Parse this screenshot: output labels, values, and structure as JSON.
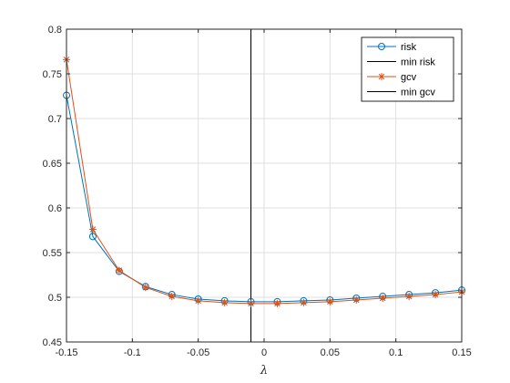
{
  "chart_data": {
    "type": "line",
    "title": "",
    "xlabel": "λ",
    "ylabel": "",
    "xlim": [
      -0.15,
      0.15
    ],
    "ylim": [
      0.45,
      0.8
    ],
    "xticks": [
      -0.15,
      -0.1,
      -0.05,
      0,
      0.05,
      0.1,
      0.15
    ],
    "xtick_labels": [
      "-0.15",
      "-0.1",
      "-0.05",
      "0",
      "0.05",
      "0.1",
      "0.15"
    ],
    "yticks": [
      0.45,
      0.5,
      0.55,
      0.6,
      0.65,
      0.7,
      0.75,
      0.8
    ],
    "ytick_labels": [
      "0.45",
      "0.5",
      "0.55",
      "0.6",
      "0.65",
      "0.7",
      "0.75",
      "0.8"
    ],
    "grid": true,
    "legend_position": "top-right",
    "x": [
      -0.15,
      -0.13,
      -0.11,
      -0.09,
      -0.07,
      -0.05,
      -0.03,
      -0.01,
      0.01,
      0.03,
      0.05,
      0.07,
      0.09,
      0.11,
      0.13,
      0.15
    ],
    "series": [
      {
        "name": "risk",
        "color": "#0072BD",
        "marker": "circle",
        "values": [
          0.726,
          0.568,
          0.529,
          0.512,
          0.503,
          0.498,
          0.496,
          0.495,
          0.495,
          0.496,
          0.497,
          0.499,
          0.501,
          0.503,
          0.505,
          0.508
        ]
      },
      {
        "name": "gcv",
        "color": "#D95319",
        "marker": "asterisk",
        "values": [
          0.766,
          0.576,
          0.53,
          0.511,
          0.501,
          0.496,
          0.494,
          0.493,
          0.493,
          0.494,
          0.495,
          0.497,
          0.499,
          0.501,
          0.503,
          0.506
        ]
      }
    ],
    "vlines": [
      {
        "name": "min risk",
        "x": -0.01,
        "color": "#000000"
      },
      {
        "name": "min gcv",
        "x": -0.01,
        "color": "#000000"
      }
    ],
    "legend": [
      "risk",
      "min risk",
      "gcv",
      "min gcv"
    ]
  }
}
